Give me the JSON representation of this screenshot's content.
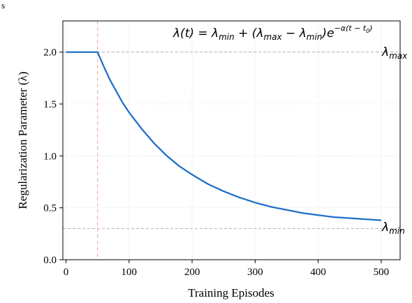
{
  "chart_data": {
    "type": "line",
    "title": "",
    "xlabel": "Training Episodes",
    "ylabel": "Regularization Parameter (λ)",
    "xlim": [
      -5,
      530
    ],
    "ylim": [
      0,
      2.3
    ],
    "xticks": [
      0,
      100,
      200,
      300,
      400,
      500
    ],
    "yticks": [
      0.0,
      0.5,
      1.0,
      1.5,
      2.0
    ],
    "xtick_labels": [
      "0",
      "100",
      "200",
      "300",
      "400",
      "500"
    ],
    "ytick_labels": [
      "0.0",
      "0.5",
      "1.0",
      "1.5",
      "2.0"
    ],
    "grid": true,
    "legend": "none",
    "series": [
      {
        "color": "#1f6fc9",
        "x": [
          0,
          50,
          60,
          70,
          80,
          90,
          100,
          120,
          140,
          160,
          180,
          200,
          225,
          250,
          275,
          300,
          325,
          350,
          375,
          400,
          425,
          450,
          475,
          500
        ],
        "y": [
          2.0,
          2.0,
          1.86,
          1.73,
          1.62,
          1.51,
          1.42,
          1.26,
          1.12,
          1.0,
          0.9,
          0.82,
          0.73,
          0.66,
          0.6,
          0.55,
          0.51,
          0.48,
          0.45,
          0.43,
          0.41,
          0.4,
          0.39,
          0.38
        ]
      }
    ],
    "reference_lines": {
      "lambda_max_y": 2.0,
      "lambda_min_y": 0.3,
      "t0_x": 50,
      "hline_color": "#b0b0b0",
      "vline_color": "#f2b8a8"
    },
    "annotations": {
      "formula_lhs": "λ(t) = λ",
      "formula_sub_min": "min",
      "formula_mid": " + (λ",
      "formula_sub_max": "max",
      "formula_minus": " − λ",
      "formula_sub_min2": "min",
      "formula_close": ")e",
      "formula_exp": "−α(t − t",
      "formula_exp_sub": "0",
      "formula_exp_close": ")",
      "lambda_max_symbol": "λ",
      "lambda_max_sub": "max",
      "lambda_min_symbol": "λ",
      "lambda_min_sub": "min"
    }
  },
  "corner_glyph": "s"
}
